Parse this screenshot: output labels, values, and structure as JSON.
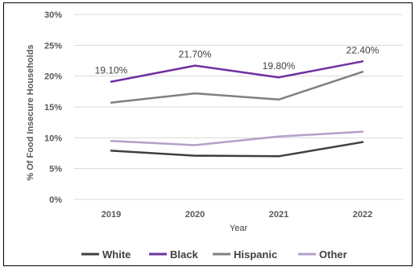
{
  "chart_data": {
    "type": "line",
    "title": "",
    "xlabel": "Year",
    "ylabel": "% Of Food Insecure Households",
    "categories": [
      "2019",
      "2020",
      "2021",
      "2022"
    ],
    "ylim": [
      0,
      30
    ],
    "yticks": [
      "0%",
      "5%",
      "10%",
      "15%",
      "20%",
      "25%",
      "30%"
    ],
    "grid": "horizontal",
    "legend_position": "bottom",
    "series": [
      {
        "name": "White",
        "color": "#404040",
        "values": [
          7.9,
          7.1,
          7.0,
          9.3
        ]
      },
      {
        "name": "Black",
        "color": "#7030a0",
        "values": [
          19.1,
          21.7,
          19.8,
          22.4
        ],
        "data_labels": [
          "19.10%",
          "21.70%",
          "19.80%",
          "22.40%"
        ]
      },
      {
        "name": "Hispanic",
        "color": "#808080",
        "values": [
          15.7,
          17.2,
          16.2,
          20.7
        ]
      },
      {
        "name": "Other",
        "color": "#b4a0c8",
        "values": [
          9.5,
          8.8,
          10.2,
          11.0
        ]
      }
    ]
  }
}
